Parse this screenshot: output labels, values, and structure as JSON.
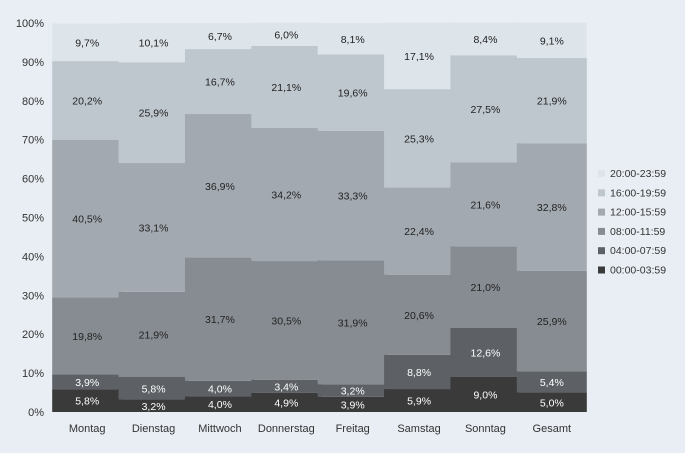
{
  "chart_data": {
    "type": "bar",
    "stacked": true,
    "percent_stacked": true,
    "categories": [
      "Montag",
      "Dienstag",
      "Mittwoch",
      "Donnerstag",
      "Freitag",
      "Samstag",
      "Sonntag",
      "Gesamt"
    ],
    "series": [
      {
        "name": "00:00-03:59",
        "color": "#3a3a3a",
        "label_color": "#ffffff",
        "values": [
          5.8,
          3.2,
          4.0,
          4.9,
          3.9,
          5.9,
          9.0,
          5.0
        ],
        "labels": [
          "5,8%",
          "3,2%",
          "4,0%",
          "4,9%",
          "3,9%",
          "5,9%",
          "9,0%",
          "5,0%"
        ]
      },
      {
        "name": "04:00-07:59",
        "color": "#5d6166",
        "label_color": "#ffffff",
        "values": [
          3.9,
          5.8,
          4.0,
          3.4,
          3.2,
          8.8,
          12.6,
          5.4
        ],
        "labels": [
          "3,9%",
          "5,8%",
          "4,0%",
          "3,4%",
          "3,2%",
          "8,8%",
          "12,6%",
          "5,4%"
        ]
      },
      {
        "name": "08:00-11:59",
        "color": "#878c92",
        "label_color": "#222222",
        "values": [
          19.8,
          21.9,
          31.7,
          30.5,
          31.9,
          20.6,
          21.0,
          25.9
        ],
        "labels": [
          "19,8%",
          "21,9%",
          "31,7%",
          "30,5%",
          "31,9%",
          "20,6%",
          "21,0%",
          "25,9%"
        ]
      },
      {
        "name": "12:00-15:59",
        "color": "#a3a9b0",
        "label_color": "#222222",
        "values": [
          40.5,
          33.1,
          36.9,
          34.2,
          33.3,
          22.4,
          21.6,
          32.8
        ],
        "labels": [
          "40,5%",
          "33,1%",
          "36,9%",
          "34,2%",
          "33,3%",
          "22,4%",
          "21,6%",
          "32,8%"
        ]
      },
      {
        "name": "16:00-19:59",
        "color": "#bfc7ce",
        "label_color": "#222222",
        "values": [
          20.2,
          25.9,
          16.7,
          21.1,
          19.6,
          25.3,
          27.5,
          21.9
        ],
        "labels": [
          "20,2%",
          "25,9%",
          "16,7%",
          "21,1%",
          "19,6%",
          "25,3%",
          "27,5%",
          "21,9%"
        ]
      },
      {
        "name": "20:00-23:59",
        "color": "#dde4ea",
        "label_color": "#222222",
        "values": [
          9.7,
          10.1,
          6.7,
          6.0,
          8.1,
          17.1,
          8.4,
          9.1
        ],
        "labels": [
          "9,7%",
          "10,1%",
          "6,7%",
          "6,0%",
          "8,1%",
          "17,1%",
          "8,4%",
          "9,1%"
        ]
      }
    ],
    "y_ticks": [
      "0%",
      "10%",
      "20%",
      "30%",
      "40%",
      "50%",
      "60%",
      "70%",
      "80%",
      "90%",
      "100%"
    ],
    "ylim": [
      0,
      100
    ],
    "legend_position": "right",
    "grid": false,
    "background": "#e8eef3"
  }
}
